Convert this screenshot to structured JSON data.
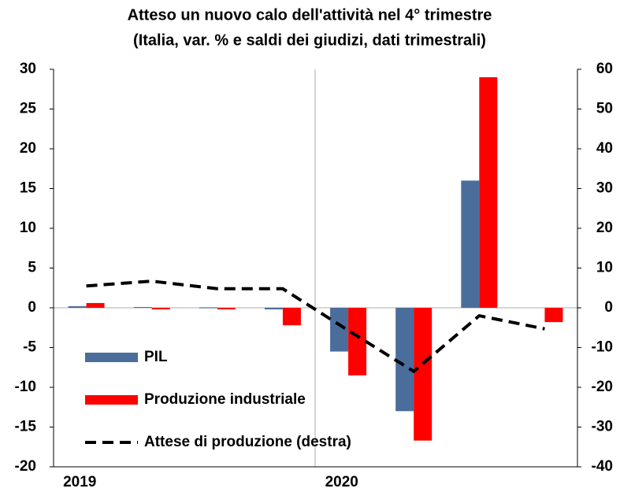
{
  "chart_data": {
    "type": "bar",
    "title": "Atteso un nuovo calo dell'attività nel 4° trimestre",
    "subtitle": "(Italia, var. % e saldi dei giudizi, dati trimestrali)",
    "categories": [
      "2019",
      null,
      null,
      null,
      "2020",
      null,
      null,
      null
    ],
    "series": [
      {
        "name": "PIL",
        "type": "bar",
        "color": "#4a6d9c",
        "values": [
          0.2,
          0.1,
          0.05,
          -0.2,
          -5.5,
          -13,
          16,
          null
        ]
      },
      {
        "name": "Produzione industriale",
        "type": "bar",
        "color": "#ff0000",
        "values": [
          0.6,
          -0.2,
          -0.2,
          -2.2,
          -8.5,
          -16.7,
          29,
          -1.8
        ]
      },
      {
        "name": "Attese di produzione (destra)",
        "type": "line",
        "axis": "y2",
        "color": "#000000",
        "values": [
          5.5,
          6.7,
          4.8,
          4.8,
          -5.7,
          -16,
          -2,
          -5.3
        ]
      }
    ],
    "ylim": [
      -20,
      30
    ],
    "yticks": [
      -20,
      -15,
      -10,
      -5,
      0,
      5,
      10,
      15,
      20,
      25,
      30
    ],
    "y2lim": [
      -40,
      60
    ],
    "y2ticks": [
      -40,
      -30,
      -20,
      -10,
      0,
      10,
      20,
      30,
      40,
      50,
      60
    ],
    "legend": "lower-left"
  }
}
